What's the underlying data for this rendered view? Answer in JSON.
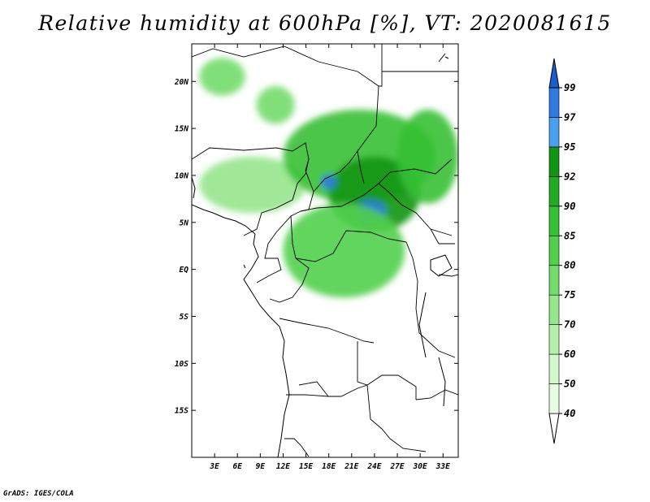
{
  "title": "Relative humidity at 600hPa [%], VT: 2020081615",
  "credit": "GrADS: IGES/COLA",
  "map": {
    "lon_labels": [
      "3E",
      "6E",
      "9E",
      "12E",
      "15E",
      "18E",
      "21E",
      "24E",
      "27E",
      "30E",
      "33E"
    ],
    "lat_labels": [
      "20N",
      "15N",
      "10N",
      "5N",
      "EQ",
      "5S",
      "10S",
      "15S"
    ],
    "lon_range": [
      0,
      35
    ],
    "lat_range": [
      -20,
      24
    ],
    "land_color": "#ffffff",
    "border_color": "#000000"
  },
  "colorbar": {
    "levels": [
      "40",
      "50",
      "60",
      "70",
      "75",
      "80",
      "85",
      "90",
      "92",
      "95",
      "97",
      "99"
    ],
    "colors": [
      "#e8fce4",
      "#d2f8cc",
      "#b4f0aa",
      "#96e68c",
      "#74dc6c",
      "#52d04c",
      "#36c034",
      "#22aa22",
      "#129612",
      "#4aa0f0",
      "#2e7ae0",
      "#1a5ed0"
    ]
  },
  "humidity_patches": [
    {
      "name": "west-africa-band",
      "lon": 8,
      "lat": 9,
      "rx": 7,
      "ry": 3,
      "level": 70
    },
    {
      "name": "chad-sahel",
      "lon": 22,
      "lat": 12,
      "rx": 10,
      "ry": 5,
      "level": 85
    },
    {
      "name": "sudan-core",
      "lon": 24,
      "lat": 8,
      "rx": 6,
      "ry": 4,
      "level": 92
    },
    {
      "name": "south-sudan-max",
      "lon": 23.5,
      "lat": 6.2,
      "rx": 2,
      "ry": 1.2,
      "level": 97
    },
    {
      "name": "car-max",
      "lon": 18,
      "lat": 9.3,
      "rx": 1,
      "ry": 0.8,
      "level": 97
    },
    {
      "name": "congo-basin",
      "lon": 20,
      "lat": 2,
      "rx": 8,
      "ry": 5,
      "level": 80
    },
    {
      "name": "ethiopia",
      "lon": 31,
      "lat": 12,
      "rx": 4,
      "ry": 5,
      "level": 85
    },
    {
      "name": "niger-north",
      "lon": 4,
      "lat": 20.5,
      "rx": 3,
      "ry": 2,
      "level": 75
    },
    {
      "name": "air-mountains",
      "lon": 11,
      "lat": 17.5,
      "rx": 2.5,
      "ry": 2,
      "level": 75
    }
  ]
}
